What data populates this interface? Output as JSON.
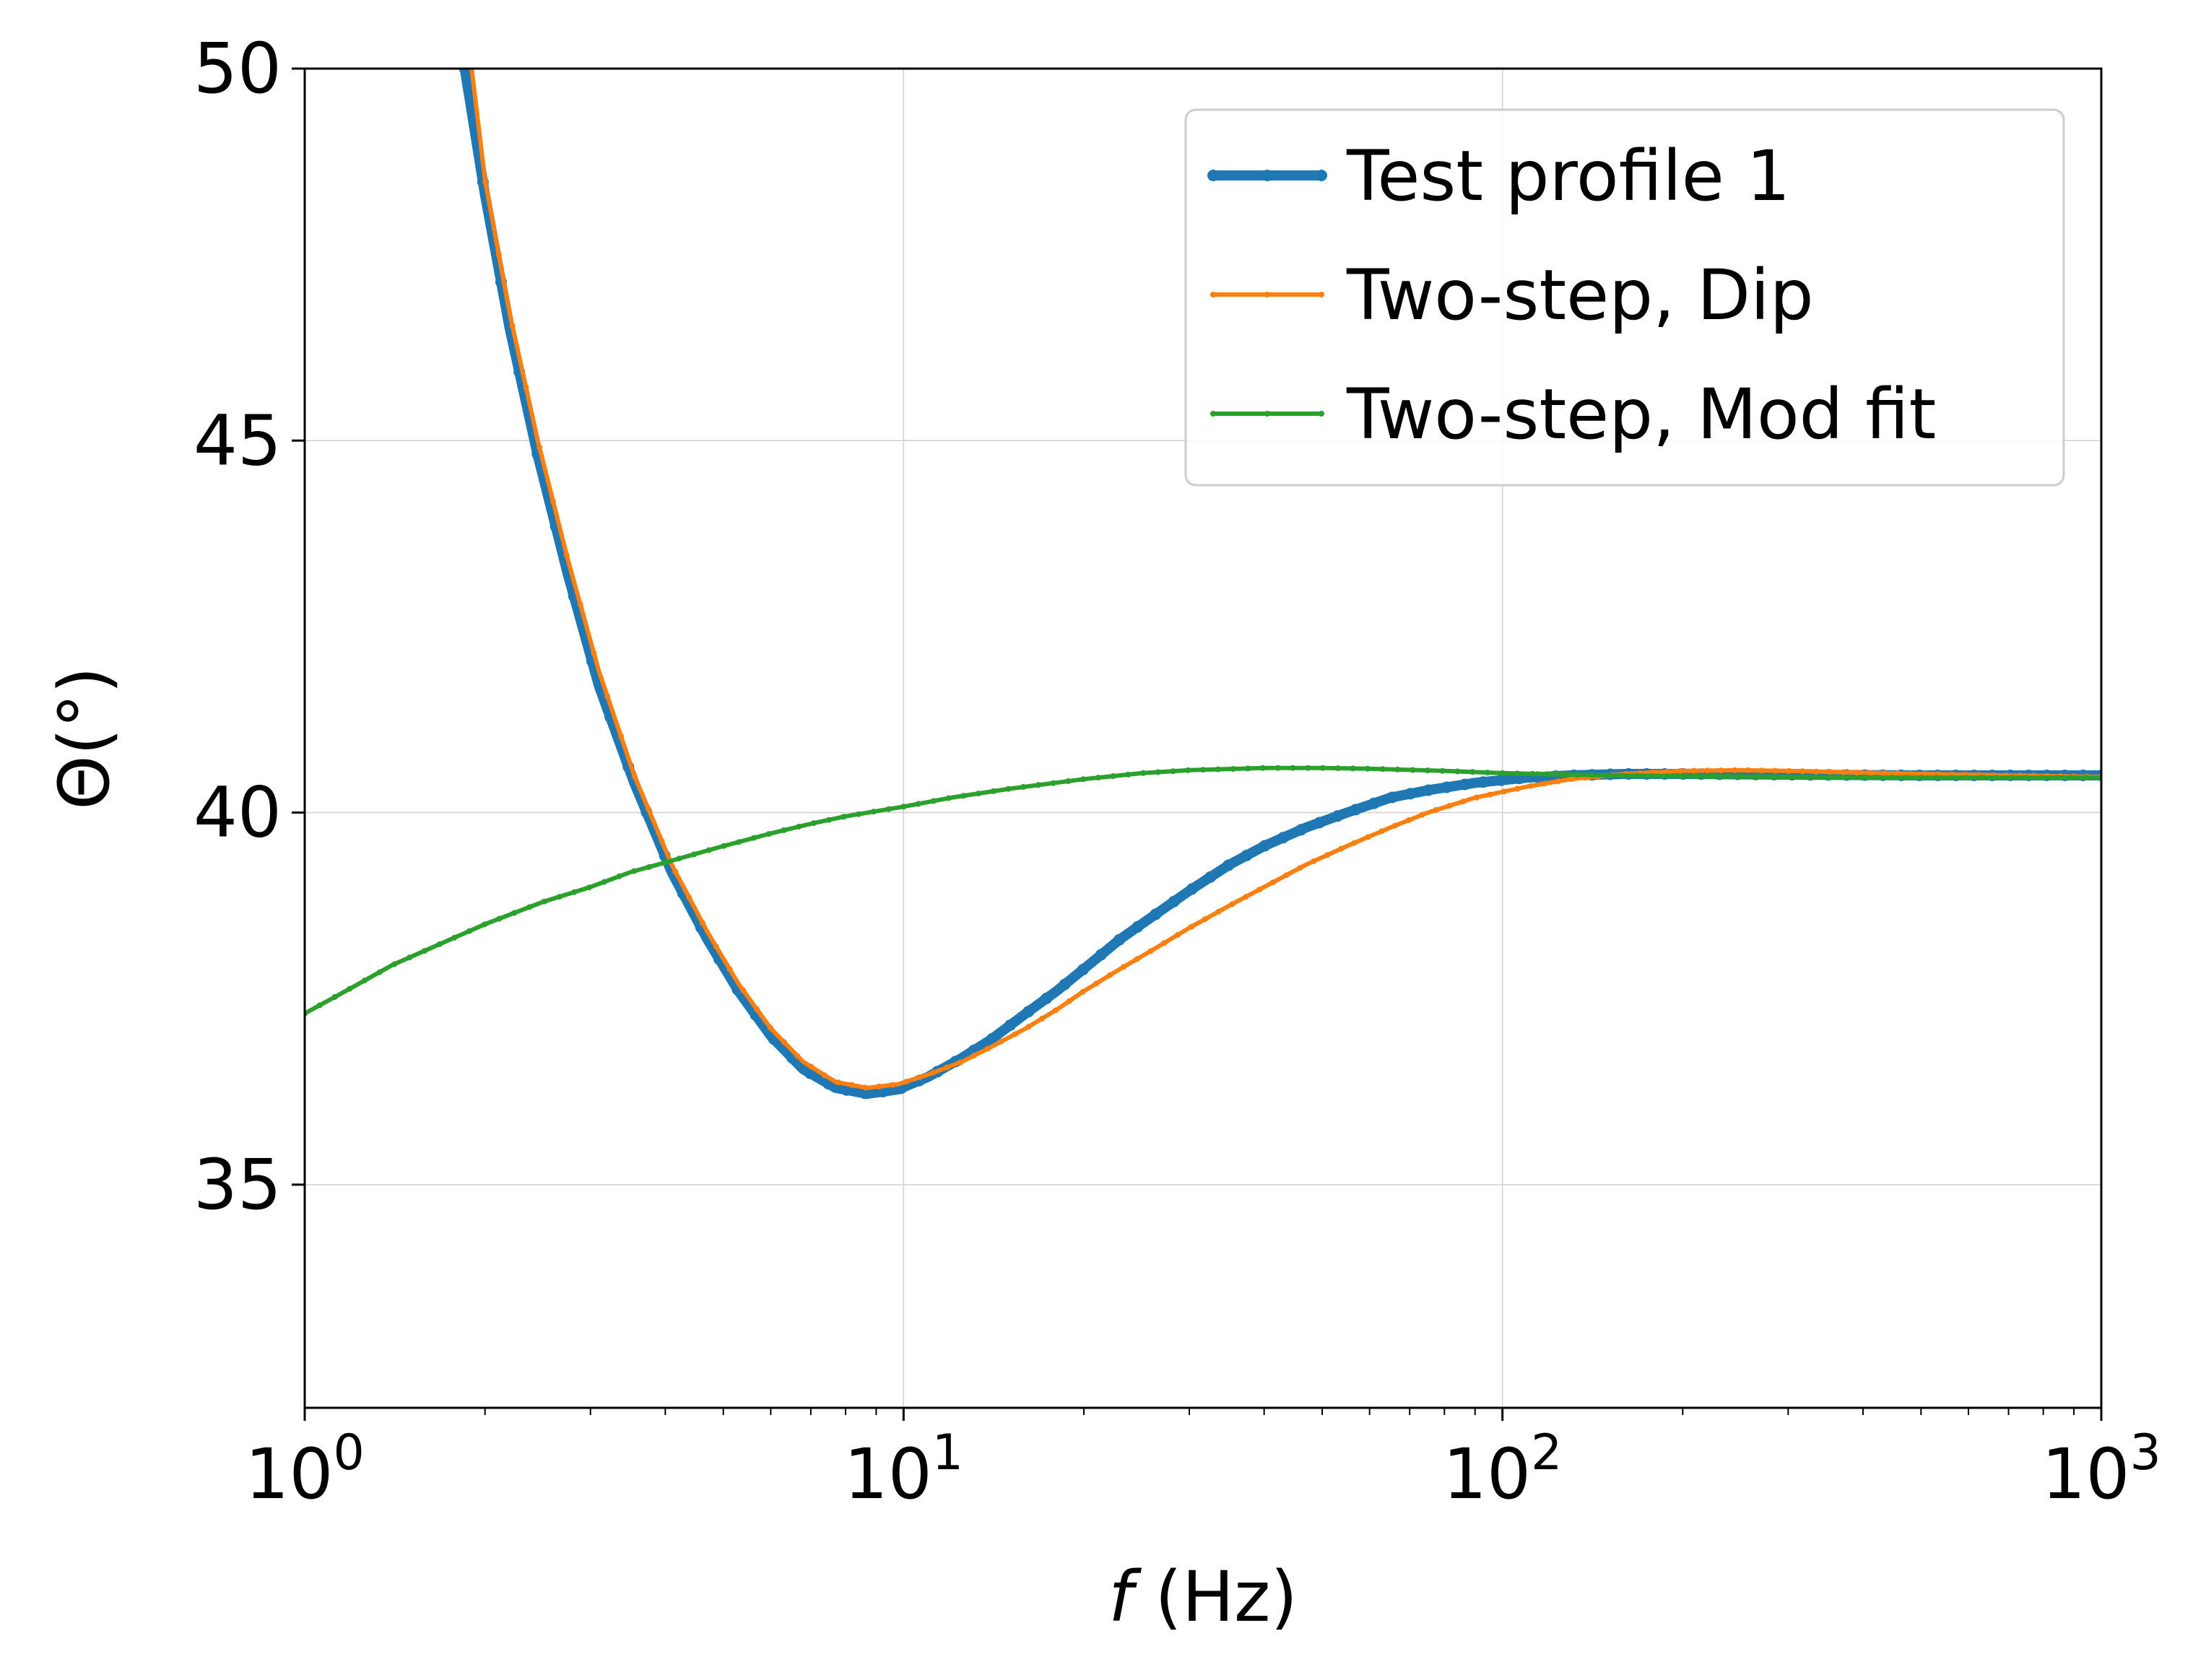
{
  "chart_data": {
    "type": "line",
    "title": "",
    "xlabel_italic": "f",
    "xlabel_rest": " (Hz)",
    "ylabel": "Θ(°)",
    "xscale": "log",
    "xlim": [
      1,
      1000
    ],
    "ylim": [
      32,
      50
    ],
    "grid": true,
    "legend_position": "top-right",
    "x_ticks": [
      {
        "base": "10",
        "exp": "0",
        "value": 1
      },
      {
        "base": "10",
        "exp": "1",
        "value": 10
      },
      {
        "base": "10",
        "exp": "2",
        "value": 100
      },
      {
        "base": "10",
        "exp": "3",
        "value": 1000
      }
    ],
    "y_ticks": [
      {
        "label": "35",
        "value": 35
      },
      {
        "label": "40",
        "value": 40
      },
      {
        "label": "45",
        "value": 45
      },
      {
        "label": "50",
        "value": 50
      }
    ],
    "series": [
      {
        "name": "Test profile 1",
        "color": "#1f77b4",
        "style": "thick",
        "points": [
          [
            1.85,
            50.0
          ],
          [
            2.0,
            48.3
          ],
          [
            2.2,
            46.5
          ],
          [
            2.45,
            44.8
          ],
          [
            2.75,
            43.2
          ],
          [
            3.1,
            41.7
          ],
          [
            3.55,
            40.4
          ],
          [
            4.1,
            39.2
          ],
          [
            4.7,
            38.3
          ],
          [
            5.3,
            37.6
          ],
          [
            6.0,
            37.0
          ],
          [
            6.8,
            36.55
          ],
          [
            7.7,
            36.3
          ],
          [
            8.7,
            36.22
          ],
          [
            9.8,
            36.28
          ],
          [
            11.0,
            36.45
          ],
          [
            12.5,
            36.7
          ],
          [
            14.0,
            36.95
          ],
          [
            16.0,
            37.3
          ],
          [
            18.0,
            37.6
          ],
          [
            20.0,
            37.9
          ],
          [
            23.0,
            38.3
          ],
          [
            26.0,
            38.6
          ],
          [
            30.0,
            38.95
          ],
          [
            35.0,
            39.3
          ],
          [
            40.0,
            39.55
          ],
          [
            47.0,
            39.8
          ],
          [
            55.0,
            40.0
          ],
          [
            65.0,
            40.2
          ],
          [
            75.0,
            40.3
          ],
          [
            90.0,
            40.4
          ],
          [
            110.0,
            40.47
          ],
          [
            130.0,
            40.5
          ],
          [
            160.0,
            40.52
          ],
          [
            200.0,
            40.52
          ],
          [
            300.0,
            40.51
          ],
          [
            500.0,
            40.5
          ],
          [
            700.0,
            40.5
          ],
          [
            1000.0,
            40.5
          ]
        ]
      },
      {
        "name": "Two-step, Dip",
        "color": "#ff7f0e",
        "style": "thin",
        "points": [
          [
            1.9,
            50.0
          ],
          [
            2.0,
            48.5
          ],
          [
            2.2,
            46.7
          ],
          [
            2.45,
            45.0
          ],
          [
            2.75,
            43.4
          ],
          [
            3.1,
            41.9
          ],
          [
            3.55,
            40.5
          ],
          [
            4.1,
            39.3
          ],
          [
            4.7,
            38.4
          ],
          [
            5.3,
            37.7
          ],
          [
            6.0,
            37.1
          ],
          [
            6.8,
            36.65
          ],
          [
            7.7,
            36.38
          ],
          [
            8.7,
            36.3
          ],
          [
            9.8,
            36.35
          ],
          [
            11.0,
            36.48
          ],
          [
            12.5,
            36.65
          ],
          [
            14.0,
            36.85
          ],
          [
            16.0,
            37.1
          ],
          [
            18.0,
            37.35
          ],
          [
            20.0,
            37.6
          ],
          [
            23.0,
            37.9
          ],
          [
            26.0,
            38.15
          ],
          [
            30.0,
            38.45
          ],
          [
            35.0,
            38.75
          ],
          [
            40.0,
            39.0
          ],
          [
            47.0,
            39.3
          ],
          [
            55.0,
            39.55
          ],
          [
            65.0,
            39.8
          ],
          [
            75.0,
            40.0
          ],
          [
            90.0,
            40.2
          ],
          [
            110.0,
            40.35
          ],
          [
            130.0,
            40.45
          ],
          [
            160.0,
            40.52
          ],
          [
            200.0,
            40.56
          ],
          [
            250.0,
            40.57
          ],
          [
            300.0,
            40.56
          ],
          [
            500.0,
            40.52
          ],
          [
            700.0,
            40.5
          ],
          [
            1000.0,
            40.48
          ]
        ]
      },
      {
        "name": "Two-step, Mod fit",
        "color": "#2ca02c",
        "style": "thin",
        "points": [
          [
            1.0,
            37.3
          ],
          [
            1.2,
            37.65
          ],
          [
            1.4,
            37.95
          ],
          [
            1.7,
            38.25
          ],
          [
            2.0,
            38.5
          ],
          [
            2.5,
            38.8
          ],
          [
            3.0,
            39.0
          ],
          [
            3.5,
            39.2
          ],
          [
            4.0,
            39.33
          ],
          [
            5.0,
            39.55
          ],
          [
            6.0,
            39.72
          ],
          [
            7.0,
            39.85
          ],
          [
            8.0,
            39.95
          ],
          [
            10.0,
            40.08
          ],
          [
            12.0,
            40.2
          ],
          [
            15.0,
            40.32
          ],
          [
            20.0,
            40.45
          ],
          [
            25.0,
            40.53
          ],
          [
            30.0,
            40.57
          ],
          [
            40.0,
            40.6
          ],
          [
            50.0,
            40.6
          ],
          [
            60.0,
            40.59
          ],
          [
            80.0,
            40.56
          ],
          [
            100.0,
            40.53
          ],
          [
            150.0,
            40.5
          ],
          [
            200.0,
            40.49
          ],
          [
            300.0,
            40.48
          ],
          [
            500.0,
            40.47
          ],
          [
            1000.0,
            40.47
          ]
        ]
      }
    ]
  }
}
